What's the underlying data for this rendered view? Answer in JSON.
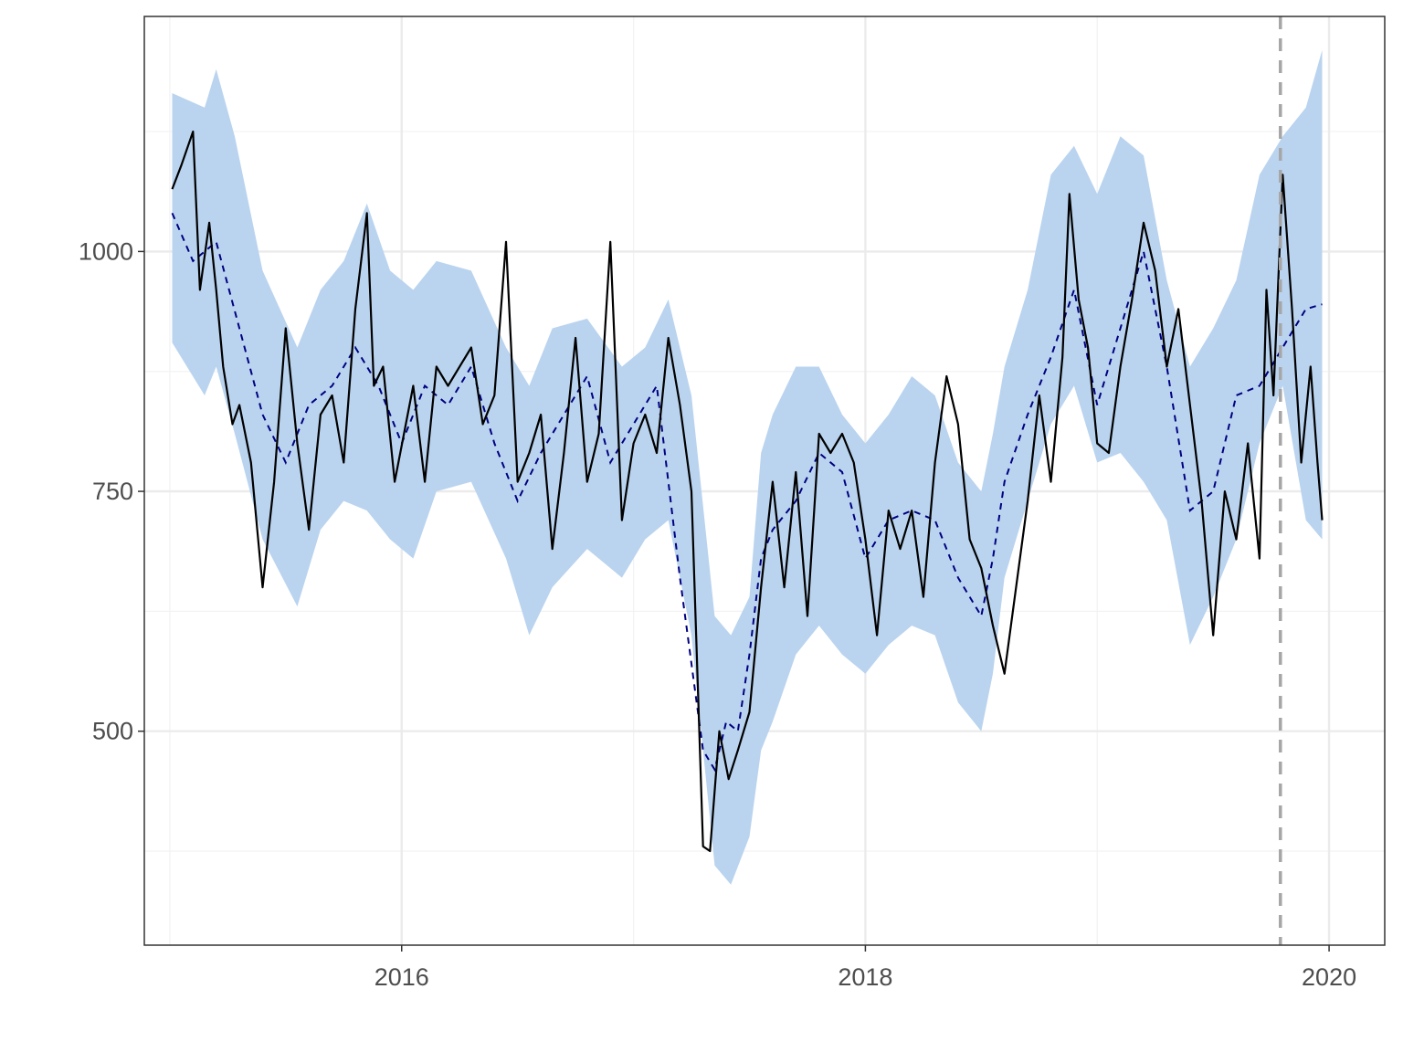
{
  "chart_data": {
    "type": "line",
    "title": "",
    "xlabel": "",
    "ylabel": "",
    "xlim": [
      2014.89,
      2020.24
    ],
    "ylim": [
      277,
      1245
    ],
    "x_ticks": [
      {
        "value": 2016,
        "label": "2016"
      },
      {
        "value": 2018,
        "label": "2018"
      },
      {
        "value": 2020,
        "label": "2020"
      }
    ],
    "x_minor_ticks": [
      2015,
      2017,
      2019
    ],
    "y_ticks": [
      {
        "value": 500,
        "label": "500"
      },
      {
        "value": 750,
        "label": "750"
      },
      {
        "value": 1000,
        "label": "1000"
      }
    ],
    "y_minor_ticks": [
      375,
      625,
      875,
      1125
    ],
    "grid": true,
    "legend": "none",
    "vline": {
      "x": 2019.79,
      "style": "dashed",
      "color": "#a6a6a6"
    },
    "series": [
      {
        "role": "band",
        "color": "#bad4ef",
        "x": [
          2015.01,
          2015.15,
          2015.2,
          2015.28,
          2015.4,
          2015.55,
          2015.65,
          2015.75,
          2015.85,
          2015.95,
          2016.05,
          2016.15,
          2016.3,
          2016.45,
          2016.55,
          2016.65,
          2016.8,
          2016.95,
          2017.05,
          2017.15,
          2017.25,
          2017.35,
          2017.42,
          2017.5,
          2017.55,
          2017.6,
          2017.7,
          2017.8,
          2017.9,
          2018.0,
          2018.1,
          2018.2,
          2018.3,
          2018.4,
          2018.5,
          2018.55,
          2018.6,
          2018.7,
          2018.8,
          2018.9,
          2019.0,
          2019.1,
          2019.2,
          2019.3,
          2019.4,
          2019.5,
          2019.6,
          2019.7,
          2019.8,
          2019.9,
          2019.97
        ],
        "lower": [
          905,
          850,
          880,
          810,
          700,
          630,
          710,
          740,
          730,
          700,
          680,
          750,
          760,
          680,
          600,
          650,
          690,
          660,
          700,
          720,
          600,
          360,
          340,
          390,
          480,
          510,
          580,
          610,
          580,
          560,
          590,
          610,
          600,
          530,
          500,
          560,
          660,
          740,
          820,
          860,
          780,
          790,
          760,
          720,
          590,
          640,
          700,
          800,
          860,
          720,
          700
        ],
        "upper": [
          1165,
          1150,
          1190,
          1120,
          980,
          900,
          960,
          990,
          1050,
          980,
          960,
          990,
          980,
          900,
          860,
          920,
          930,
          880,
          900,
          950,
          850,
          620,
          600,
          640,
          790,
          830,
          880,
          880,
          830,
          800,
          830,
          870,
          850,
          780,
          750,
          810,
          880,
          960,
          1080,
          1110,
          1060,
          1120,
          1100,
          970,
          880,
          920,
          970,
          1080,
          1120,
          1150,
          1210
        ]
      },
      {
        "role": "predicted",
        "color": "#000080",
        "style": "dashed",
        "x": [
          2015.01,
          2015.1,
          2015.2,
          2015.3,
          2015.4,
          2015.5,
          2015.6,
          2015.7,
          2015.8,
          2015.9,
          2016.0,
          2016.1,
          2016.2,
          2016.3,
          2016.4,
          2016.5,
          2016.6,
          2016.7,
          2016.8,
          2016.9,
          2017.0,
          2017.1,
          2017.2,
          2017.3,
          2017.35,
          2017.4,
          2017.45,
          2017.5,
          2017.55,
          2017.6,
          2017.7,
          2017.8,
          2017.9,
          2018.0,
          2018.1,
          2018.2,
          2018.3,
          2018.4,
          2018.5,
          2018.55,
          2018.6,
          2018.7,
          2018.8,
          2018.9,
          2019.0,
          2019.1,
          2019.2,
          2019.3,
          2019.4,
          2019.5,
          2019.6,
          2019.7,
          2019.8,
          2019.9,
          2019.97
        ],
        "y": [
          1040,
          990,
          1010,
          920,
          830,
          780,
          840,
          860,
          900,
          860,
          800,
          860,
          840,
          880,
          800,
          740,
          790,
          830,
          870,
          780,
          820,
          860,
          660,
          480,
          460,
          510,
          500,
          580,
          680,
          710,
          740,
          790,
          770,
          680,
          720,
          730,
          720,
          660,
          620,
          680,
          760,
          830,
          890,
          960,
          840,
          920,
          1000,
          880,
          730,
          750,
          850,
          860,
          900,
          940,
          945
        ]
      },
      {
        "role": "observed",
        "color": "#000000",
        "style": "solid",
        "x": [
          2015.01,
          2015.05,
          2015.1,
          2015.13,
          2015.17,
          2015.2,
          2015.23,
          2015.27,
          2015.3,
          2015.35,
          2015.4,
          2015.45,
          2015.5,
          2015.55,
          2015.6,
          2015.65,
          2015.7,
          2015.75,
          2015.8,
          2015.85,
          2015.88,
          2015.92,
          2015.97,
          2016.05,
          2016.1,
          2016.15,
          2016.2,
          2016.3,
          2016.35,
          2016.4,
          2016.45,
          2016.5,
          2016.55,
          2016.6,
          2016.65,
          2016.7,
          2016.75,
          2016.8,
          2016.85,
          2016.9,
          2016.95,
          2017.0,
          2017.05,
          2017.1,
          2017.15,
          2017.2,
          2017.25,
          2017.3,
          2017.33,
          2017.37,
          2017.41,
          2017.45,
          2017.5,
          2017.55,
          2017.6,
          2017.65,
          2017.7,
          2017.75,
          2017.8,
          2017.85,
          2017.9,
          2017.95,
          2018.0,
          2018.05,
          2018.1,
          2018.15,
          2018.2,
          2018.25,
          2018.3,
          2018.35,
          2018.4,
          2018.45,
          2018.5,
          2018.55,
          2018.6,
          2018.65,
          2018.7,
          2018.75,
          2018.8,
          2018.85,
          2018.88,
          2018.92,
          2018.96,
          2019.0,
          2019.05,
          2019.1,
          2019.15,
          2019.2,
          2019.25,
          2019.3,
          2019.35,
          2019.4,
          2019.45,
          2019.5,
          2019.55,
          2019.6,
          2019.65,
          2019.7,
          2019.73,
          2019.76,
          2019.8,
          2019.84,
          2019.88,
          2019.92,
          2019.95,
          2019.97
        ],
        "y": [
          1065,
          1090,
          1125,
          960,
          1030,
          960,
          880,
          820,
          840,
          780,
          650,
          760,
          920,
          800,
          710,
          830,
          850,
          780,
          940,
          1040,
          860,
          880,
          760,
          860,
          760,
          880,
          860,
          900,
          820,
          850,
          1010,
          760,
          790,
          830,
          690,
          790,
          910,
          760,
          810,
          1010,
          720,
          800,
          830,
          790,
          910,
          840,
          750,
          380,
          375,
          500,
          450,
          480,
          520,
          650,
          760,
          650,
          770,
          620,
          810,
          790,
          810,
          780,
          700,
          600,
          730,
          690,
          730,
          640,
          780,
          870,
          820,
          700,
          670,
          610,
          560,
          650,
          740,
          850,
          760,
          890,
          1060,
          950,
          900,
          800,
          790,
          880,
          950,
          1030,
          980,
          880,
          940,
          840,
          740,
          600,
          750,
          700,
          800,
          680,
          960,
          850,
          1080,
          940,
          780,
          880,
          780,
          720
        ]
      }
    ]
  }
}
